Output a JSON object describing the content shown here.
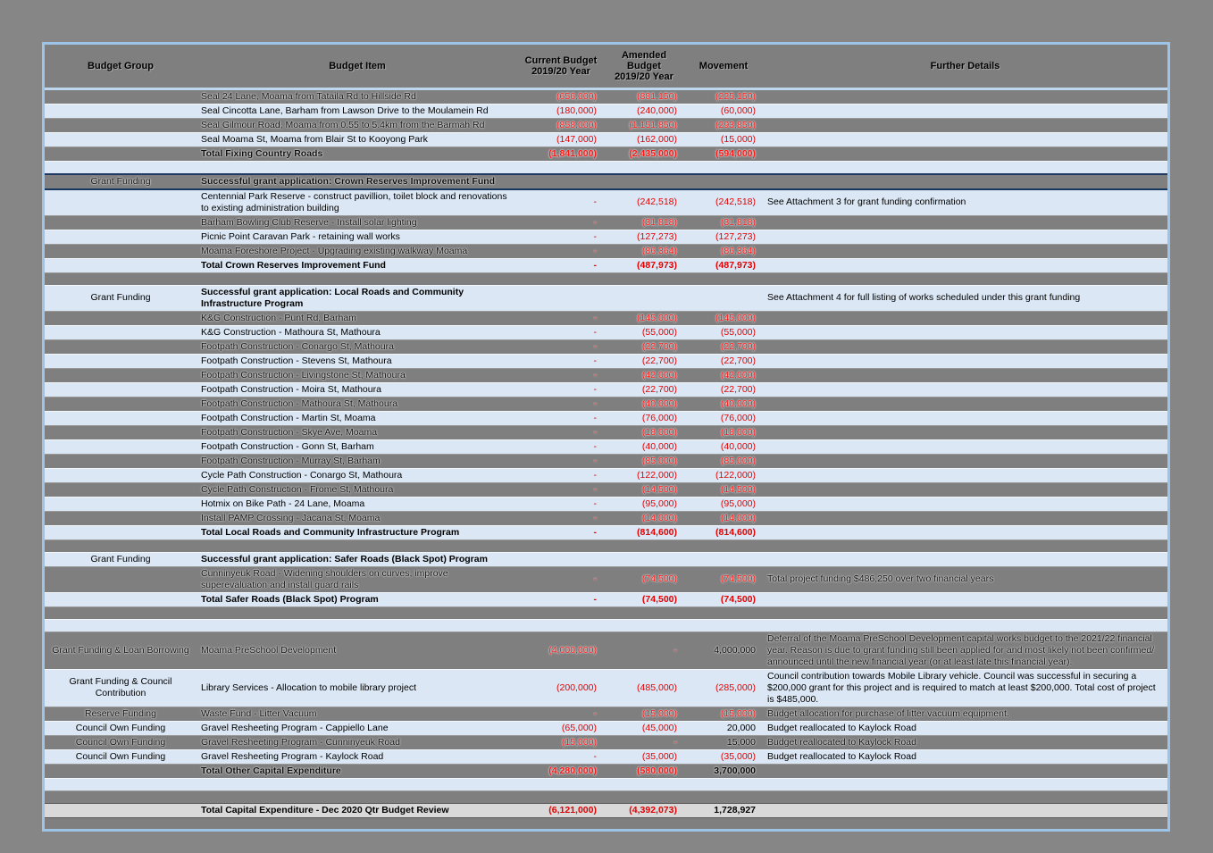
{
  "colors": {
    "page_bg": "#868686",
    "table_border": "#9DC3E6",
    "row_light_blue": "#DBE7F4",
    "row_gray": "#7F7F7F",
    "grand_total_bg": "#D9D9D9",
    "negative_red": "#E60000",
    "section_accent_border": "#1F3864",
    "header_bg": "#7F7F7F"
  },
  "table": {
    "columns": {
      "group": "Budget Group",
      "item": "Budget Item",
      "current": "Current Budget\n2019/20 Year",
      "amended": "Amended Budget\n2019/20 Year",
      "movement": "Movement",
      "details": "Further Details"
    },
    "rows": [
      {
        "shade": "gray",
        "item": "Seal 24 Lane, Moama from Tataila Rd to Hillside Rd",
        "current": "(656,000)",
        "amended": "(881,150)",
        "movement": "(225,150)"
      },
      {
        "shade": "blue",
        "item": "Seal Cincotta Lane, Barham from Lawson Drive to the Moulamein Rd",
        "current": "(180,000)",
        "amended": "(240,000)",
        "movement": "(60,000)"
      },
      {
        "shade": "gray",
        "item": "Seal Gilmour Road, Moama from 0.55 to 5.4km from the Barmah Rd",
        "current": "(858,000)",
        "amended": "(1,151,850)",
        "movement": "(293,850)"
      },
      {
        "shade": "blue",
        "item": "Seal Moama St, Moama from Blair St to Kooyong Park",
        "current": "(147,000)",
        "amended": "(162,000)",
        "movement": "(15,000)"
      },
      {
        "shade": "gray",
        "bold": true,
        "item": "Total Fixing Country Roads",
        "current": "(1,841,000)",
        "amended": "(2,435,000)",
        "movement": "(594,000)"
      },
      {
        "shade": "blue",
        "blank": true
      },
      {
        "shade": "gray",
        "accent": true,
        "section": true,
        "group": "Grant Funding",
        "item": "Successful grant application: Crown Reserves Improvement Fund"
      },
      {
        "shade": "blue",
        "item": "Centennial Park Reserve - construct pavillion, toilet block and renovations to existing administration building",
        "current": "-",
        "amended": "(242,518)",
        "movement": "(242,518)",
        "details": "See Attachment 3 for grant funding confirmation"
      },
      {
        "shade": "gray",
        "item": "Barham Bowling Club Reserve - Install solar lighting",
        "current": "-",
        "amended": "(31,818)",
        "movement": "(31,818)"
      },
      {
        "shade": "blue",
        "item": "Picnic Point Caravan Park - retaining wall works",
        "current": "-",
        "amended": "(127,273)",
        "movement": "(127,273)"
      },
      {
        "shade": "gray",
        "item": "Moama Foreshore Project - Upgrading existing walkway Moama",
        "current": "-",
        "amended": "(86,364)",
        "movement": "(86,364)"
      },
      {
        "shade": "blue",
        "bold": true,
        "item": "Total  Crown Reserves Improvement Fund",
        "current": "-",
        "amended": "(487,973)",
        "movement": "(487,973)"
      },
      {
        "shade": "gray",
        "blank": true
      },
      {
        "shade": "blue",
        "section": true,
        "group": "Grant Funding",
        "item": "Successful grant application: Local Roads and Community Infrastructure Program",
        "details": "See Attachment 4 for full listing of works scheduled under this grant funding"
      },
      {
        "shade": "gray",
        "item": "K&G Construction - Punt Rd, Barham",
        "current": "-",
        "amended": "(145,000)",
        "movement": "(145,000)"
      },
      {
        "shade": "blue",
        "item": "K&G Construction - Mathoura St, Mathoura",
        "current": "-",
        "amended": "(55,000)",
        "movement": "(55,000)"
      },
      {
        "shade": "gray",
        "item": "Footpath Construction - Conargo St, Mathoura",
        "current": "-",
        "amended": "(22,700)",
        "movement": "(22,700)"
      },
      {
        "shade": "blue",
        "item": "Footpath Construction - Stevens St, Mathoura",
        "current": "-",
        "amended": "(22,700)",
        "movement": "(22,700)"
      },
      {
        "shade": "gray",
        "item": "Footpath Construction - Livingstone St, Mathoura",
        "current": "-",
        "amended": "(42,000)",
        "movement": "(42,000)"
      },
      {
        "shade": "blue",
        "item": "Footpath Construction - Moira St, Mathoura",
        "current": "-",
        "amended": "(22,700)",
        "movement": "(22,700)"
      },
      {
        "shade": "gray",
        "item": "Footpath Construction - Mathoura St, Mathoura",
        "current": "-",
        "amended": "(40,000)",
        "movement": "(40,000)"
      },
      {
        "shade": "blue",
        "item": "Footpath Construction - Martin St, Moama",
        "current": "-",
        "amended": "(76,000)",
        "movement": "(76,000)"
      },
      {
        "shade": "gray",
        "item": "Footpath Construction - Skye Ave, Moama",
        "current": "-",
        "amended": "(18,000)",
        "movement": "(18,000)"
      },
      {
        "shade": "blue",
        "item": "Footpath Construction - Gonn St, Barham",
        "current": "-",
        "amended": "(40,000)",
        "movement": "(40,000)"
      },
      {
        "shade": "gray",
        "item": "Footpath Construction - Murray St, Barham",
        "current": "-",
        "amended": "(85,000)",
        "movement": "(85,000)"
      },
      {
        "shade": "blue",
        "item": "Cycle Path Construction - Conargo St, Mathoura",
        "current": "-",
        "amended": "(122,000)",
        "movement": "(122,000)"
      },
      {
        "shade": "gray",
        "item": "Cycle Path Construction - Frome St, Mathoura",
        "current": "-",
        "amended": "(14,500)",
        "movement": "(14,500)"
      },
      {
        "shade": "blue",
        "item": "Hotmix on Bike Path - 24 Lane, Moama",
        "current": "-",
        "amended": "(95,000)",
        "movement": "(95,000)"
      },
      {
        "shade": "gray",
        "item": "Install PAMP Crossing - Jacana St, Moama",
        "current": "-",
        "amended": "(14,000)",
        "movement": "(14,000)"
      },
      {
        "shade": "blue",
        "bold": true,
        "item": "Total Local Roads and Community Infrastructure Program",
        "current": "-",
        "amended": "(814,600)",
        "movement": "(814,600)"
      },
      {
        "shade": "gray",
        "blank": true
      },
      {
        "shade": "blue",
        "section": true,
        "group": "Grant Funding",
        "item": "Successful grant application: Safer Roads (Black Spot) Program"
      },
      {
        "shade": "gray",
        "item": "Cunninyeuk Road - Widening shoulders on curves, improve superevaluation and install guard rails",
        "current": "-",
        "amended": "(74,500)",
        "movement": "(74,500)",
        "details": "Total project funding $486,250 over two financial years"
      },
      {
        "shade": "blue",
        "bold": true,
        "item": "Total Safer Roads (Black Spot) Program",
        "current": "-",
        "amended": "(74,500)",
        "movement": "(74,500)"
      },
      {
        "shade": "gray",
        "blank": true
      },
      {
        "shade": "blue",
        "blank": true
      },
      {
        "shade": "gray",
        "group": "Grant Funding & Loan Borrowing",
        "item": "Moama PreSchool Development",
        "current": "(4,000,000)",
        "amended": "-",
        "movement": "4,000,000",
        "details": "Deferral of the Moama PreSchool Development capital works budget to the 2021/22 financial year. Reason is due to grant funding still been applied for and most likely not been confirmed/ announced until the new financial year (or at least late this financial year)."
      },
      {
        "shade": "blue",
        "group": "Grant Funding & Council Contribution",
        "item": "Library Services - Allocation to mobile library project",
        "current": "(200,000)",
        "amended": "(485,000)",
        "movement": "(285,000)",
        "details": "Council contribution towards Mobile Library vehicle. Council was successful in securing a $200,000 grant for this project and is required to match at least $200,000. Total cost of project is $485,000."
      },
      {
        "shade": "gray",
        "group": "Reserve Funding",
        "item": "Waste Fund - Litter Vacuum",
        "current": "-",
        "amended": "(15,000)",
        "movement": "(15,000)",
        "details": "Budget allocation for purchase of litter vacuum equipment."
      },
      {
        "shade": "blue",
        "group": "Council Own Funding",
        "item": "Gravel Resheeting Program - Cappiello Lane",
        "current": "(65,000)",
        "amended": "(45,000)",
        "movement": "20,000",
        "details": "Budget reallocated to Kaylock Road"
      },
      {
        "shade": "gray",
        "group": "Council Own Funding",
        "item": "Gravel Resheeting Program - Cunninyeuk Road",
        "current": "(15,000)",
        "amended": "-",
        "movement": "15,000",
        "details": "Budget reallocated to Kaylock Road"
      },
      {
        "shade": "blue",
        "group": "Council Own Funding",
        "item": "Gravel Resheeting Program - Kaylock Road",
        "current": "-",
        "amended": "(35,000)",
        "movement": "(35,000)",
        "details": "Budget reallocated to Kaylock Road"
      },
      {
        "shade": "gray",
        "bold": true,
        "item": "Total Other Capital Expenditure",
        "current": "(4,280,000)",
        "amended": "(580,000)",
        "movement": "3,700,000"
      },
      {
        "shade": "blue",
        "blank": true
      },
      {
        "shade": "gray",
        "blank": true
      },
      {
        "shade": "lightgray",
        "bold": true,
        "item": "Total Capital Expenditure - Dec 2020 Qtr Budget Review",
        "current": "(6,121,000)",
        "amended": "(4,392,073)",
        "movement": "1,728,927"
      },
      {
        "shade": "gray",
        "blank": true,
        "tallness": "short"
      }
    ]
  }
}
